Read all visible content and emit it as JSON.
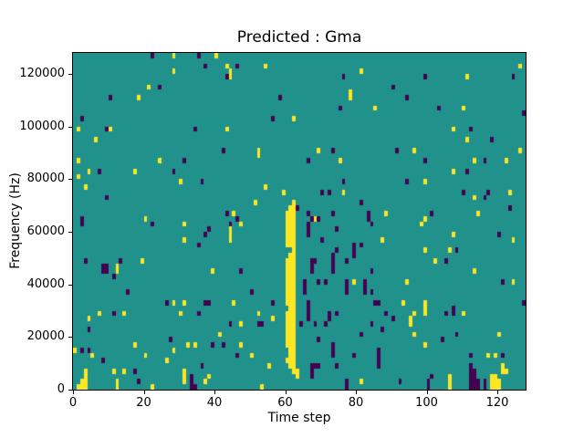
{
  "chart_data": {
    "type": "heatmap",
    "title": "Predicted : Gma",
    "xlabel": "Time step",
    "ylabel": "Frequency (Hz)",
    "xlim": [
      0,
      128
    ],
    "ylim": [
      0,
      128000
    ],
    "x_ticks": [
      0,
      20,
      40,
      60,
      80,
      100,
      120
    ],
    "y_ticks": [
      0,
      20000,
      40000,
      60000,
      80000,
      100000,
      120000
    ],
    "grid": {
      "time_steps": 128,
      "freq_bins": 64,
      "hz_per_bin": 2000
    },
    "legend": "none",
    "colormap": {
      "name": "viridis",
      "background": "#21918c",
      "low": "#440154",
      "high": "#fde725"
    },
    "yellow_band": {
      "description": "solid yellow vertical streak near t=60-62",
      "columns": [
        {
          "t": 60,
          "bin_min": 5,
          "bin_max": 33,
          "holes": [
            6,
            7,
            15,
            25,
            26
          ]
        },
        {
          "t": 61,
          "bin_min": 4,
          "bin_max": 34,
          "holes": [
            26
          ]
        },
        {
          "t": 62,
          "bin_min": 3,
          "bin_max": 35,
          "holes": []
        }
      ]
    },
    "cells": {
      "yellow": [
        [
          28,
          63
        ],
        [
          40,
          63
        ],
        [
          28,
          60
        ],
        [
          44,
          60
        ],
        [
          44,
          59
        ],
        [
          43,
          61
        ],
        [
          54,
          61
        ],
        [
          126,
          61
        ],
        [
          111,
          59
        ],
        [
          81,
          60
        ],
        [
          21,
          57
        ],
        [
          78,
          56
        ],
        [
          78,
          55
        ],
        [
          18,
          55
        ],
        [
          85,
          53
        ],
        [
          110,
          53
        ],
        [
          62,
          51
        ],
        [
          1,
          49
        ],
        [
          10,
          49
        ],
        [
          43,
          49
        ],
        [
          107,
          49
        ],
        [
          6,
          47
        ],
        [
          111,
          47
        ],
        [
          52,
          45
        ],
        [
          52,
          44
        ],
        [
          69,
          45
        ],
        [
          96,
          45
        ],
        [
          126,
          45
        ],
        [
          1,
          43
        ],
        [
          24,
          43
        ],
        [
          75,
          43
        ],
        [
          113,
          43
        ],
        [
          122,
          43
        ],
        [
          4,
          41
        ],
        [
          17,
          41
        ],
        [
          107,
          41
        ],
        [
          1,
          40
        ],
        [
          30,
          39
        ],
        [
          99,
          39
        ],
        [
          3,
          38
        ],
        [
          54,
          38
        ],
        [
          59,
          37
        ],
        [
          76,
          37
        ],
        [
          123,
          37
        ],
        [
          113,
          36
        ],
        [
          51,
          35
        ],
        [
          45,
          33
        ],
        [
          88,
          33
        ],
        [
          114,
          33
        ],
        [
          20,
          32
        ],
        [
          68,
          32
        ],
        [
          99,
          32
        ],
        [
          31,
          31
        ],
        [
          47,
          31
        ],
        [
          98,
          31
        ],
        [
          44,
          30
        ],
        [
          44,
          29
        ],
        [
          44,
          28
        ],
        [
          31,
          28
        ],
        [
          87,
          28
        ],
        [
          107,
          29
        ],
        [
          124,
          28
        ],
        [
          99,
          26
        ],
        [
          106,
          26
        ],
        [
          19,
          24
        ],
        [
          102,
          24
        ],
        [
          12,
          23
        ],
        [
          12,
          22
        ],
        [
          39,
          22
        ],
        [
          113,
          22
        ],
        [
          79,
          20
        ],
        [
          94,
          20
        ],
        [
          124,
          20
        ],
        [
          28,
          16
        ],
        [
          31,
          16
        ],
        [
          45,
          16
        ],
        [
          93,
          16
        ],
        [
          99,
          16
        ],
        [
          99,
          15
        ],
        [
          7,
          14
        ],
        [
          14,
          14
        ],
        [
          30,
          14
        ],
        [
          52,
          14
        ],
        [
          96,
          14
        ],
        [
          99,
          14
        ],
        [
          110,
          14
        ],
        [
          56,
          13
        ],
        [
          4,
          13
        ],
        [
          95,
          13
        ],
        [
          95,
          12
        ],
        [
          47,
          12
        ],
        [
          41,
          10
        ],
        [
          96,
          10
        ],
        [
          120,
          10
        ],
        [
          17,
          8
        ],
        [
          32,
          8
        ],
        [
          34,
          8
        ],
        [
          47,
          8
        ],
        [
          99,
          8
        ],
        [
          0,
          7
        ],
        [
          28,
          7
        ],
        [
          5,
          6
        ],
        [
          20,
          6
        ],
        [
          50,
          6
        ],
        [
          117,
          6
        ],
        [
          119,
          6
        ],
        [
          26,
          5
        ],
        [
          55,
          4
        ],
        [
          121,
          4
        ],
        [
          3,
          3
        ],
        [
          11,
          3
        ],
        [
          14,
          3
        ],
        [
          31,
          3
        ],
        [
          121,
          3
        ],
        [
          122,
          3
        ],
        [
          63,
          3
        ],
        [
          3,
          2
        ],
        [
          31,
          2
        ],
        [
          38,
          2
        ],
        [
          63,
          2
        ],
        [
          106,
          2
        ],
        [
          118,
          2
        ],
        [
          119,
          2
        ],
        [
          2,
          1
        ],
        [
          3,
          1
        ],
        [
          12,
          1
        ],
        [
          31,
          1
        ],
        [
          37,
          1
        ],
        [
          81,
          1
        ],
        [
          106,
          1
        ],
        [
          118,
          1
        ],
        [
          119,
          1
        ],
        [
          120,
          1
        ],
        [
          1,
          0
        ],
        [
          2,
          0
        ],
        [
          3,
          0
        ],
        [
          12,
          0
        ],
        [
          22,
          0
        ],
        [
          53,
          0
        ],
        [
          106,
          0
        ],
        [
          118,
          0
        ],
        [
          119,
          0
        ],
        [
          120,
          0
        ]
      ],
      "dark": [
        [
          22,
          63
        ],
        [
          35,
          63
        ],
        [
          37,
          61
        ],
        [
          46,
          61
        ],
        [
          43,
          59
        ],
        [
          76,
          59
        ],
        [
          99,
          59
        ],
        [
          124,
          59
        ],
        [
          24,
          57
        ],
        [
          90,
          57
        ],
        [
          10,
          55
        ],
        [
          58,
          55
        ],
        [
          94,
          55
        ],
        [
          75,
          53
        ],
        [
          103,
          53
        ],
        [
          127,
          52
        ],
        [
          2,
          51
        ],
        [
          56,
          51
        ],
        [
          9,
          49
        ],
        [
          34,
          49
        ],
        [
          112,
          49
        ],
        [
          118,
          47
        ],
        [
          42,
          45
        ],
        [
          73,
          45
        ],
        [
          91,
          45
        ],
        [
          31,
          43
        ],
        [
          66,
          43
        ],
        [
          99,
          43
        ],
        [
          116,
          43
        ],
        [
          7,
          41
        ],
        [
          28,
          41
        ],
        [
          111,
          41
        ],
        [
          36,
          39
        ],
        [
          76,
          39
        ],
        [
          94,
          39
        ],
        [
          70,
          37
        ],
        [
          72,
          37
        ],
        [
          110,
          37
        ],
        [
          117,
          37
        ],
        [
          9,
          36
        ],
        [
          116,
          36
        ],
        [
          81,
          35
        ],
        [
          63,
          34
        ],
        [
          123,
          34
        ],
        [
          43,
          33
        ],
        [
          66,
          33
        ],
        [
          73,
          33
        ],
        [
          83,
          33
        ],
        [
          101,
          33
        ],
        [
          2,
          32
        ],
        [
          46,
          32
        ],
        [
          67,
          32
        ],
        [
          69,
          32
        ],
        [
          83,
          32
        ],
        [
          2,
          31
        ],
        [
          22,
          31
        ],
        [
          44,
          31
        ],
        [
          66,
          31
        ],
        [
          84,
          31
        ],
        [
          38,
          30
        ],
        [
          66,
          30
        ],
        [
          74,
          30
        ],
        [
          37,
          29
        ],
        [
          66,
          29
        ],
        [
          120,
          29
        ],
        [
          70,
          28
        ],
        [
          35,
          27
        ],
        [
          79,
          27
        ],
        [
          81,
          27
        ],
        [
          74,
          26
        ],
        [
          79,
          26
        ],
        [
          108,
          26
        ],
        [
          73,
          25
        ],
        [
          79,
          25
        ],
        [
          3,
          24
        ],
        [
          13,
          24
        ],
        [
          67,
          24
        ],
        [
          68,
          24
        ],
        [
          73,
          24
        ],
        [
          77,
          24
        ],
        [
          105,
          24
        ],
        [
          8,
          23
        ],
        [
          9,
          23
        ],
        [
          67,
          23
        ],
        [
          73,
          23
        ],
        [
          8,
          22
        ],
        [
          9,
          22
        ],
        [
          47,
          22
        ],
        [
          67,
          22
        ],
        [
          73,
          22
        ],
        [
          84,
          22
        ],
        [
          11,
          21
        ],
        [
          65,
          20
        ],
        [
          69,
          20
        ],
        [
          71,
          20
        ],
        [
          77,
          20
        ],
        [
          82,
          20
        ],
        [
          121,
          20
        ],
        [
          65,
          19
        ],
        [
          77,
          19
        ],
        [
          82,
          19
        ],
        [
          15,
          18
        ],
        [
          50,
          18
        ],
        [
          65,
          18
        ],
        [
          77,
          18
        ],
        [
          82,
          18
        ],
        [
          84,
          18
        ],
        [
          26,
          16
        ],
        [
          37,
          16
        ],
        [
          38,
          16
        ],
        [
          56,
          16
        ],
        [
          66,
          16
        ],
        [
          85,
          16
        ],
        [
          86,
          16
        ],
        [
          127,
          16
        ],
        [
          66,
          15
        ],
        [
          107,
          15
        ],
        [
          11,
          14
        ],
        [
          35,
          14
        ],
        [
          66,
          14
        ],
        [
          72,
          14
        ],
        [
          74,
          14
        ],
        [
          88,
          14
        ],
        [
          105,
          14
        ],
        [
          107,
          14
        ],
        [
          66,
          13
        ],
        [
          72,
          13
        ],
        [
          90,
          13
        ],
        [
          44,
          12
        ],
        [
          52,
          12
        ],
        [
          53,
          12
        ],
        [
          64,
          12
        ],
        [
          68,
          12
        ],
        [
          71,
          12
        ],
        [
          84,
          12
        ],
        [
          4,
          11
        ],
        [
          87,
          11
        ],
        [
          81,
          10
        ],
        [
          108,
          10
        ],
        [
          27,
          9
        ],
        [
          69,
          9
        ],
        [
          104,
          9
        ],
        [
          39,
          8
        ],
        [
          42,
          8
        ],
        [
          73,
          8
        ],
        [
          2,
          7
        ],
        [
          4,
          7
        ],
        [
          73,
          7
        ],
        [
          86,
          7
        ],
        [
          46,
          6
        ],
        [
          73,
          6
        ],
        [
          79,
          6
        ],
        [
          86,
          6
        ],
        [
          112,
          6
        ],
        [
          121,
          6
        ],
        [
          8,
          5
        ],
        [
          86,
          5
        ],
        [
          36,
          4
        ],
        [
          67,
          4
        ],
        [
          68,
          4
        ],
        [
          69,
          4
        ],
        [
          74,
          4
        ],
        [
          86,
          4
        ],
        [
          112,
          4
        ],
        [
          17,
          3
        ],
        [
          67,
          3
        ],
        [
          112,
          3
        ],
        [
          113,
          3
        ],
        [
          33,
          2
        ],
        [
          67,
          2
        ],
        [
          101,
          2
        ],
        [
          112,
          2
        ],
        [
          113,
          2
        ],
        [
          18,
          1
        ],
        [
          33,
          1
        ],
        [
          77,
          1
        ],
        [
          92,
          1
        ],
        [
          100,
          1
        ],
        [
          112,
          1
        ],
        [
          113,
          1
        ],
        [
          114,
          1
        ],
        [
          116,
          1
        ],
        [
          33,
          0
        ],
        [
          34,
          0
        ],
        [
          77,
          0
        ],
        [
          100,
          0
        ],
        [
          112,
          0
        ],
        [
          113,
          0
        ],
        [
          114,
          0
        ],
        [
          116,
          0
        ]
      ]
    }
  }
}
